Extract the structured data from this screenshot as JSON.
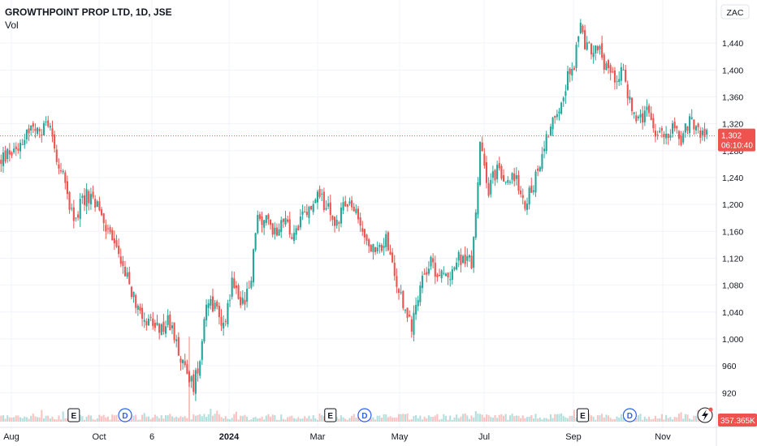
{
  "header": {
    "symbol": "GROWTHPOINT PROP LTD, 1D, JSE",
    "volume_label": "Vol"
  },
  "currency": "ZAC",
  "colors": {
    "up": "#26a69a",
    "down": "#ef5350",
    "grid": "#f0f3fa",
    "axis_text": "#131722",
    "last_price_bg": "#ef5350",
    "event_marker": "#2962ff"
  },
  "last_price": {
    "value": "1,302",
    "countdown": "06:10:40"
  },
  "volume_badge": "357.365K",
  "chart_data": {
    "type": "candlestick",
    "title": "GROWTHPOINT PROP LTD, 1D, JSE",
    "ylim": [
      895,
      1480
    ],
    "y_ticks": [
      920,
      960,
      1000,
      1040,
      1080,
      1120,
      1160,
      1200,
      1240,
      1280,
      1320,
      1360,
      1400,
      1440
    ],
    "y_tick_labels": [
      "920",
      "960",
      "1,000",
      "1,040",
      "1,080",
      "1,120",
      "1,160",
      "1,200",
      "1,240",
      "1,280",
      "1,320",
      "1,360",
      "1,400",
      "1,440"
    ],
    "x_ticks": [
      "Aug",
      "Oct",
      "6",
      "2024",
      "Mar",
      "May",
      "Jul",
      "Sep",
      "Nov"
    ],
    "x_tick_bold": [
      "2024"
    ],
    "last_close": 1302,
    "price_path": [
      [
        0,
        1265
      ],
      [
        8,
        1290
      ],
      [
        14,
        1315
      ],
      [
        18,
        1300
      ],
      [
        22,
        1325
      ],
      [
        28,
        1250
      ],
      [
        34,
        1180
      ],
      [
        40,
        1215
      ],
      [
        45,
        1195
      ],
      [
        50,
        1160
      ],
      [
        56,
        1120
      ],
      [
        62,
        1060
      ],
      [
        68,
        1030
      ],
      [
        74,
        1010
      ],
      [
        78,
        1025
      ],
      [
        82,
        1000
      ],
      [
        85,
        960
      ],
      [
        90,
        930
      ],
      [
        93,
        975
      ],
      [
        96,
        1060
      ],
      [
        100,
        1050
      ],
      [
        104,
        1020
      ],
      [
        108,
        1085
      ],
      [
        112,
        1055
      ],
      [
        116,
        1070
      ],
      [
        120,
        1180
      ],
      [
        124,
        1175
      ],
      [
        128,
        1160
      ],
      [
        132,
        1180
      ],
      [
        136,
        1150
      ],
      [
        140,
        1175
      ],
      [
        144,
        1190
      ],
      [
        148,
        1210
      ],
      [
        152,
        1200
      ],
      [
        156,
        1165
      ],
      [
        160,
        1200
      ],
      [
        164,
        1195
      ],
      [
        168,
        1170
      ],
      [
        172,
        1140
      ],
      [
        176,
        1125
      ],
      [
        180,
        1150
      ],
      [
        184,
        1090
      ],
      [
        188,
        1050
      ],
      [
        192,
        1020
      ],
      [
        196,
        1085
      ],
      [
        200,
        1115
      ],
      [
        204,
        1100
      ],
      [
        208,
        1090
      ],
      [
        212,
        1110
      ],
      [
        216,
        1125
      ],
      [
        220,
        1110
      ],
      [
        224,
        1285
      ],
      [
        228,
        1225
      ],
      [
        232,
        1255
      ],
      [
        236,
        1225
      ],
      [
        240,
        1245
      ],
      [
        244,
        1200
      ],
      [
        248,
        1220
      ],
      [
        252,
        1265
      ],
      [
        256,
        1310
      ],
      [
        260,
        1340
      ],
      [
        264,
        1380
      ],
      [
        268,
        1410
      ],
      [
        271,
        1460
      ],
      [
        274,
        1430
      ],
      [
        278,
        1440
      ],
      [
        282,
        1410
      ],
      [
        286,
        1390
      ],
      [
        290,
        1400
      ],
      [
        294,
        1355
      ],
      [
        298,
        1320
      ],
      [
        302,
        1335
      ],
      [
        306,
        1305
      ],
      [
        310,
        1300
      ],
      [
        314,
        1320
      ],
      [
        318,
        1295
      ],
      [
        322,
        1325
      ],
      [
        326,
        1310
      ],
      [
        330,
        1302
      ]
    ],
    "volume_spike_bar": 88,
    "events": [
      {
        "label": "E",
        "bar": 34
      },
      {
        "label": "D",
        "bar": 58
      },
      {
        "label": "E",
        "bar": 154
      },
      {
        "label": "D",
        "bar": 170
      },
      {
        "label": "E",
        "bar": 272
      },
      {
        "label": "D",
        "bar": 294
      }
    ]
  }
}
